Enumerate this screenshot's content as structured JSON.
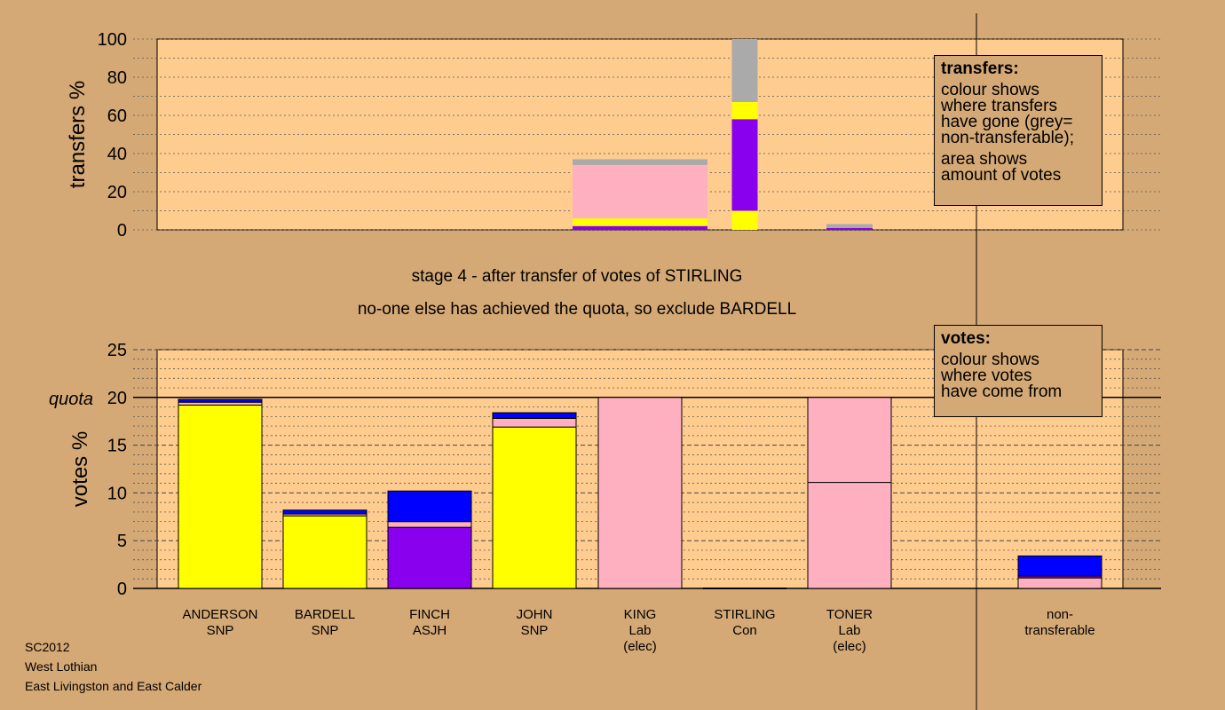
{
  "stage_text": "stage 4 - after transfer of votes of STIRLING",
  "exclude_text": "no-one else has achieved the quota, so exclude BARDELL",
  "transfers_legend": {
    "title": "transfers:",
    "para1": [
      "colour shows",
      "where transfers",
      "have gone (grey=",
      "non-transferable);"
    ],
    "para2": [
      "area shows",
      "amount of votes"
    ]
  },
  "votes_legend": {
    "title": "votes:",
    "para1": [
      "colour shows",
      "where votes",
      "have come from"
    ]
  },
  "footer": {
    "election": "SC2012",
    "council": "West Lothian",
    "ward": "East Livingston and East Calder"
  },
  "colors": {
    "background": "#d5a975",
    "plot_bg": "#ffcc8f",
    "snp": "#ffff00",
    "lab": "#ffb0c0",
    "asjh": "#8800ee",
    "con": "#0000ff",
    "non_transferable": "#aaaaaa"
  },
  "chart_data": [
    {
      "type": "bar",
      "name": "transfers",
      "ylabel": "transfers %",
      "ylim": [
        0,
        100
      ],
      "yticks": [
        0,
        20,
        40,
        60,
        80,
        100
      ],
      "grid": true,
      "columns": [
        {
          "label": "STIRLING",
          "width_share": 0.38,
          "segments": [
            {
              "to": "FINCH",
              "color": "#8800ee",
              "value": 2
            },
            {
              "to": "ANDERSON",
              "color": "#ffff00",
              "value": 1
            },
            {
              "to": "JOHN",
              "color": "#ffff00",
              "value": 3
            },
            {
              "to": "TONER",
              "color": "#ffb0c0",
              "value": 28
            },
            {
              "to": "non-transferable",
              "color": "#aaaaaa",
              "value": 3
            }
          ]
        },
        {
          "label": "unnamed",
          "width_share": 1.0,
          "segments": [
            {
              "color": "#ffff00",
              "value": 10
            },
            {
              "color": "#8800ee",
              "value": 48
            },
            {
              "color": "#ffff00",
              "value": 9
            },
            {
              "color": "#aaaaaa",
              "value": 33
            }
          ]
        },
        {
          "label": "unnamed",
          "width_share": 0.03,
          "segments": [
            {
              "color": "#8800ee",
              "value": 1
            },
            {
              "color": "#aaaaaa",
              "value": 2
            }
          ]
        }
      ]
    },
    {
      "type": "bar",
      "name": "votes",
      "ylabel": "votes %",
      "ylim": [
        0,
        25
      ],
      "yticks": [
        0,
        5,
        10,
        15,
        20,
        25
      ],
      "quota": 20,
      "quota_label": "quota",
      "grid": true,
      "candidates": [
        {
          "name": "ANDERSON",
          "party": "SNP",
          "elected": "",
          "segments": [
            {
              "color": "#ffff00",
              "value": 19.2
            },
            {
              "color": "#ffb0c0",
              "value": 0.3
            },
            {
              "color": "#0000ff",
              "value": 0.3
            }
          ]
        },
        {
          "name": "BARDELL",
          "party": "SNP",
          "elected": "",
          "segments": [
            {
              "color": "#ffff00",
              "value": 7.6
            },
            {
              "color": "#ffb0c0",
              "value": 0.2
            },
            {
              "color": "#0000ff",
              "value": 0.4
            }
          ]
        },
        {
          "name": "FINCH",
          "party": "ASJH",
          "elected": "",
          "segments": [
            {
              "color": "#8800ee",
              "value": 6.4
            },
            {
              "color": "#ffb0c0",
              "value": 0.6
            },
            {
              "color": "#0000ff",
              "value": 3.2
            }
          ]
        },
        {
          "name": "JOHN",
          "party": "SNP",
          "elected": "",
          "segments": [
            {
              "color": "#ffff00",
              "value": 16.9
            },
            {
              "color": "#ffb0c0",
              "value": 0.9
            },
            {
              "color": "#0000ff",
              "value": 0.6
            }
          ]
        },
        {
          "name": "KING",
          "party": "Lab",
          "elected": "(elec)",
          "segments": [
            {
              "color": "#ffb0c0",
              "value": 20
            }
          ]
        },
        {
          "name": "STIRLING",
          "party": "Con",
          "elected": "",
          "segments": [
            {
              "color": "#0000ff",
              "value": 0
            }
          ]
        },
        {
          "name": "TONER",
          "party": "Lab",
          "elected": "(elec)",
          "segments": [
            {
              "color": "#ffb0c0",
              "value": 11.1
            },
            {
              "color": "#ffb0c0",
              "value": 8.9
            }
          ]
        }
      ],
      "non_transferable": {
        "label": [
          "non-",
          "transferable"
        ],
        "segments": [
          {
            "color": "#ffb0c0",
            "value": 1.1
          },
          {
            "color": "#8800ee",
            "value": 0.2
          },
          {
            "color": "#0000ff",
            "value": 2.1
          }
        ]
      }
    }
  ]
}
